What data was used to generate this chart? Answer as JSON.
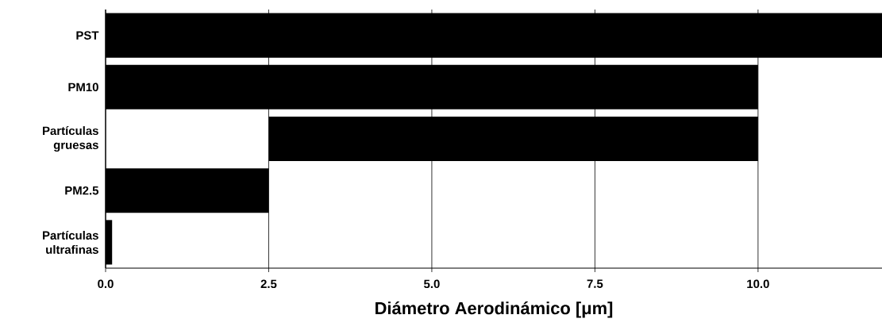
{
  "chart_data": {
    "type": "bar",
    "orientation": "horizontal",
    "categories": [
      "PST",
      "PM10",
      "Partículas gruesas",
      "PM2.5",
      "Partículas ultrafinas"
    ],
    "values": [
      11.9,
      10,
      7.5,
      2.5,
      0.1
    ],
    "base": [
      0,
      0,
      2.5,
      0,
      0
    ],
    "color": "#000000",
    "xlim": [
      0,
      11.9
    ],
    "xticks": [
      {
        "value": 0,
        "label": "0.0"
      },
      2.5,
      {
        "value": 5,
        "label": "5.0"
      },
      {
        "value": 7.5,
        "label": "7.5"
      },
      {
        "value": 10,
        "label": "10.0"
      }
    ],
    "xlabel": "Diámetro Aerodinámico [μm]",
    "grid": "x"
  }
}
